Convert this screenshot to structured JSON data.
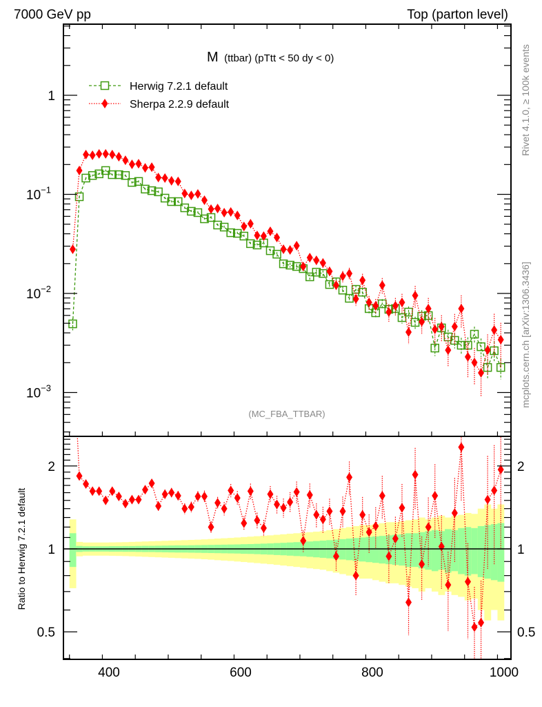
{
  "header": {
    "left": "7000 GeV pp",
    "right": "Top (parton level)"
  },
  "side_labels": {
    "rivet": "Rivet 4.1.0, ≥ 100k events",
    "mcplots": "mcplots.cern.ch [arXiv:1306.3436]"
  },
  "chart_data": {
    "type": "line",
    "title_main": "M",
    "title_rest": "(ttbar) (pTtt < 50 dy < 0)",
    "watermark": "(MC_FBA_TTBAR)",
    "xlabel": "",
    "ylabel_ratio": "Ratio to Herwig 7.2.1 default",
    "xlim": [
      331,
      1010
    ],
    "ylim": [
      0.00037,
      5.2
    ],
    "yscale": "log",
    "ratio_ylim": [
      0.397,
      2.52
    ],
    "ratio_yscale": "log",
    "legend_position": "top-left",
    "x_ticks": [
      "400",
      "600",
      "800",
      "1000"
    ],
    "x_tick_values": [
      400,
      600,
      800,
      1000
    ],
    "y_ticks": [
      {
        "value": 1,
        "base": "1",
        "exp": ""
      },
      {
        "value": 0.1,
        "base": "10",
        "exp": "−1"
      },
      {
        "value": 0.01,
        "base": "10",
        "exp": "−2"
      },
      {
        "value": 0.001,
        "base": "10",
        "exp": "−3"
      }
    ],
    "ratio_ticks": [
      {
        "value": 2,
        "label": "2"
      },
      {
        "value": 1,
        "label": "1"
      },
      {
        "value": 0.5,
        "label": "0.5"
      }
    ],
    "bin_width": 10,
    "x": [
      345,
      355,
      365,
      375,
      385,
      395,
      405,
      415,
      425,
      435,
      445,
      455,
      465,
      475,
      485,
      495,
      505,
      515,
      525,
      535,
      545,
      555,
      565,
      575,
      585,
      595,
      605,
      615,
      625,
      635,
      645,
      655,
      665,
      675,
      685,
      695,
      705,
      715,
      725,
      735,
      745,
      755,
      765,
      775,
      785,
      795,
      805,
      815,
      825,
      835,
      845,
      855,
      865,
      875,
      885,
      895,
      905,
      915,
      925,
      935,
      945,
      955,
      965,
      975,
      985,
      995
    ],
    "series": [
      {
        "name": "Herwig 7.2.1 default",
        "color": "#3d9a0f",
        "marker": "open-square",
        "line": "dashed",
        "values": [
          0.00493,
          0.0946,
          0.146,
          0.155,
          0.161,
          0.174,
          0.158,
          0.158,
          0.155,
          0.132,
          0.135,
          0.113,
          0.109,
          0.106,
          0.0916,
          0.0845,
          0.0845,
          0.0731,
          0.0675,
          0.0654,
          0.0566,
          0.0584,
          0.049,
          0.0467,
          0.041,
          0.0404,
          0.0379,
          0.0318,
          0.0308,
          0.0323,
          0.027,
          0.0249,
          0.0199,
          0.0193,
          0.0187,
          0.0178,
          0.0147,
          0.0164,
          0.0159,
          0.0123,
          0.0131,
          0.0108,
          0.00893,
          0.011,
          0.0103,
          0.00703,
          0.00638,
          0.00786,
          0.00691,
          0.00703,
          0.0057,
          0.00648,
          0.0051,
          0.00589,
          0.00598,
          0.00281,
          0.00449,
          0.00364,
          0.00336,
          0.003,
          0.003,
          0.00388,
          0.0029,
          0.00179,
          0.00264,
          0.00179
        ],
        "rel_err": [
          0.14,
          0.025,
          0.022,
          0.022,
          0.022,
          0.022,
          0.023,
          0.023,
          0.024,
          0.024,
          0.025,
          0.026,
          0.026,
          0.027,
          0.028,
          0.029,
          0.03,
          0.03,
          0.031,
          0.032,
          0.033,
          0.034,
          0.035,
          0.036,
          0.037,
          0.038,
          0.04,
          0.041,
          0.043,
          0.045,
          0.047,
          0.05,
          0.052,
          0.055,
          0.058,
          0.06,
          0.064,
          0.068,
          0.072,
          0.076,
          0.08,
          0.085,
          0.09,
          0.095,
          0.1,
          0.105,
          0.11,
          0.115,
          0.12,
          0.125,
          0.13,
          0.14,
          0.14,
          0.15,
          0.16,
          0.17,
          0.16,
          0.18,
          0.17,
          0.19,
          0.2,
          0.19,
          0.21,
          0.22,
          0.23,
          0.24
        ],
        "band_rel_err": [
          0.28,
          0.06,
          0.055,
          0.055,
          0.055,
          0.055,
          0.056,
          0.057,
          0.058,
          0.06,
          0.062,
          0.064,
          0.066,
          0.068,
          0.07,
          0.072,
          0.074,
          0.076,
          0.078,
          0.08,
          0.083,
          0.086,
          0.09,
          0.093,
          0.096,
          0.1,
          0.104,
          0.108,
          0.112,
          0.116,
          0.12,
          0.125,
          0.13,
          0.135,
          0.14,
          0.145,
          0.15,
          0.155,
          0.16,
          0.17,
          0.18,
          0.19,
          0.2,
          0.21,
          0.22,
          0.22,
          0.23,
          0.24,
          0.25,
          0.25,
          0.26,
          0.27,
          0.28,
          0.3,
          0.28,
          0.3,
          0.32,
          0.3,
          0.32,
          0.33,
          0.35,
          0.34,
          0.4,
          0.45,
          0.4,
          0.45
        ]
      },
      {
        "name": "Sherpa 2.2.9 default",
        "color": "#ff0000",
        "marker": "filled-diamond",
        "line": "dotted",
        "values": [
          0.0279,
          0.174,
          0.252,
          0.248,
          0.256,
          0.256,
          0.252,
          0.24,
          0.221,
          0.201,
          0.204,
          0.185,
          0.188,
          0.148,
          0.146,
          0.137,
          0.135,
          0.102,
          0.0977,
          0.101,
          0.0873,
          0.0709,
          0.072,
          0.0654,
          0.0664,
          0.0613,
          0.0474,
          0.0506,
          0.0385,
          0.0379,
          0.0424,
          0.0367,
          0.0279,
          0.0275,
          0.0303,
          0.0187,
          0.023,
          0.0216,
          0.0203,
          0.0167,
          0.0121,
          0.0149,
          0.0159,
          0.0088,
          0.0136,
          0.00812,
          0.0075,
          0.0121,
          0.00648,
          0.0075,
          0.00812,
          0.00407,
          0.00953,
          0.00518,
          0.00703,
          0.00434,
          0.00463,
          0.00268,
          0.00463,
          0.00703,
          0.00229,
          0.00201,
          0.00158,
          0.00268,
          0.00427,
          0.00341
        ],
        "rel_err": [
          0.05,
          0.03,
          0.03,
          0.03,
          0.03,
          0.03,
          0.03,
          0.03,
          0.03,
          0.03,
          0.035,
          0.035,
          0.035,
          0.04,
          0.04,
          0.04,
          0.04,
          0.045,
          0.045,
          0.045,
          0.05,
          0.05,
          0.05,
          0.055,
          0.055,
          0.06,
          0.06,
          0.065,
          0.065,
          0.07,
          0.07,
          0.075,
          0.08,
          0.085,
          0.09,
          0.09,
          0.1,
          0.1,
          0.11,
          0.11,
          0.12,
          0.13,
          0.14,
          0.15,
          0.16,
          0.16,
          0.17,
          0.18,
          0.2,
          0.2,
          0.22,
          0.24,
          0.25,
          0.26,
          0.28,
          0.3,
          0.3,
          0.32,
          0.34,
          0.36,
          0.38,
          0.4,
          0.42,
          0.44,
          0.46,
          0.48
        ],
        "ratio": [
          5.65,
          1.84,
          1.72,
          1.62,
          1.62,
          1.5,
          1.62,
          1.55,
          1.46,
          1.51,
          1.51,
          1.64,
          1.73,
          1.43,
          1.58,
          1.6,
          1.56,
          1.4,
          1.42,
          1.55,
          1.55,
          1.2,
          1.47,
          1.4,
          1.63,
          1.53,
          1.24,
          1.62,
          1.27,
          1.19,
          1.58,
          1.45,
          1.41,
          1.48,
          1.61,
          1.07,
          1.57,
          1.33,
          1.28,
          1.37,
          0.94,
          1.37,
          1.82,
          0.8,
          1.33,
          1.15,
          1.21,
          1.56,
          0.94,
          1.09,
          1.41,
          0.64,
          1.86,
          0.88,
          1.2,
          1.56,
          1.02,
          0.74,
          1.35,
          2.34,
          0.76,
          0.52,
          0.54,
          1.51,
          1.63,
          1.94
        ]
      }
    ]
  }
}
